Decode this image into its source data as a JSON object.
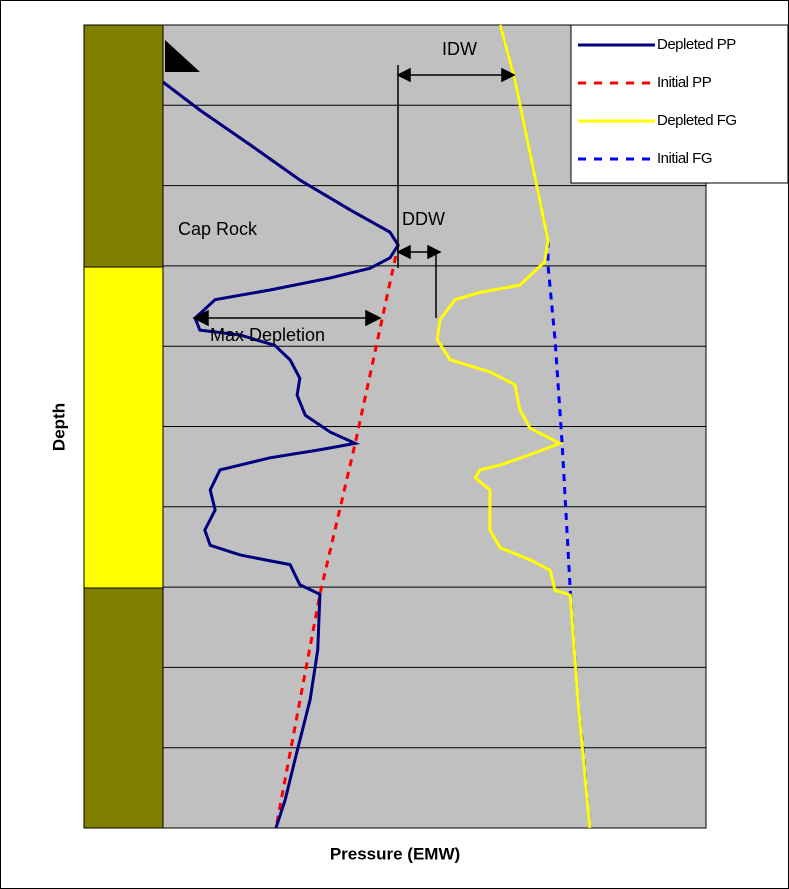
{
  "chart_data": {
    "type": "line",
    "x_label": "Pressure (EMW)",
    "y_label": "Depth",
    "xlim": [
      0,
      100
    ],
    "ylim": [
      100,
      0
    ],
    "yticks": [
      10,
      20,
      30,
      40,
      50,
      60,
      70,
      80,
      90
    ],
    "grid": true,
    "legend": "top-right",
    "annotations": [
      "IDW",
      "DDW",
      "Cap Rock",
      "Max Depletion"
    ],
    "series": [
      {
        "name": "Depleted PP",
        "color": "#000080",
        "dash": false,
        "x": [
          0,
          6.8,
          16,
          25.2,
          34.4,
          41.8,
          43.3,
          41.8,
          38.1,
          30.8,
          19.7,
          9.6,
          5.9,
          6.8,
          14.2,
          20.6,
          23.4,
          25.2,
          24.7,
          26.2,
          30.8,
          35.4,
          28.9,
          19.7,
          10.5,
          8.7,
          9.6,
          7.7,
          8.7,
          14.2,
          23.4,
          25.2,
          28.9,
          28.5,
          27.1,
          24.3,
          22.5,
          20.8
        ],
        "values": [
          7.1,
          10.6,
          14.9,
          19.3,
          23,
          25.8,
          27.4,
          29,
          30.3,
          31.5,
          33,
          34.2,
          36.5,
          38,
          38.6,
          39.9,
          41.7,
          44,
          46.1,
          48.6,
          50.7,
          52.1,
          52.9,
          53.9,
          55.4,
          57.9,
          60.4,
          62.9,
          64.8,
          66,
          67.2,
          69.7,
          70.9,
          77.8,
          84,
          91.5,
          96.5,
          100
        ]
      },
      {
        "name": "Initial PP",
        "color": "#ff0000",
        "dash": true,
        "x": [
          0,
          6.8,
          16,
          25.2,
          34.4,
          41.8,
          43.3,
          35.4,
          28.9,
          20.8
        ],
        "values": [
          7.1,
          10.6,
          14.9,
          19.3,
          23,
          25.8,
          27.4,
          52.1,
          70.9,
          100
        ]
      },
      {
        "name": "Depleted FG",
        "color": "#ffff00",
        "dash": false,
        "x": [
          62.1,
          64.8,
          70.9,
          70.3,
          65.7,
          58.4,
          53.8,
          51,
          50.5,
          52.9,
          60.2,
          64.8,
          65.7,
          67.6,
          73.1,
          67.6,
          62.1,
          58.4,
          57.5,
          60.2,
          60.2,
          62.1,
          67.6,
          71.3,
          72.2,
          75,
          76.4,
          78.6
        ],
        "values": [
          0,
          6.8,
          26.8,
          29.5,
          32.4,
          33.3,
          34.2,
          36.7,
          39.2,
          41.7,
          43.2,
          44.8,
          47.9,
          50.2,
          52.1,
          53.5,
          54.8,
          55.4,
          56.4,
          57.9,
          62.9,
          65.1,
          66.6,
          67.9,
          70.4,
          71,
          84,
          100
        ]
      },
      {
        "name": "Initial FG",
        "color": "#0000ff",
        "dash": true,
        "x": [
          62.1,
          64.8,
          70.9,
          70.9,
          72.2,
          73.5,
          75,
          76.4,
          77.3,
          78.6
        ],
        "values": [
          0,
          6.8,
          26.8,
          29.9,
          39.2,
          52.1,
          70.4,
          84,
          90,
          100
        ]
      }
    ]
  }
}
